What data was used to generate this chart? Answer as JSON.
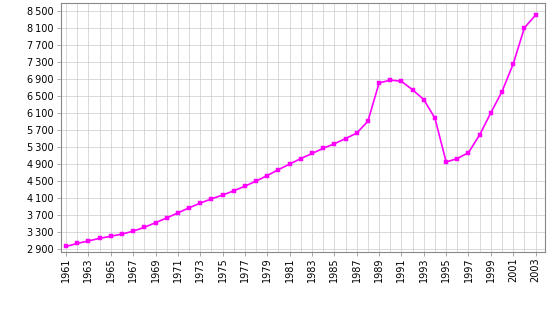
{
  "years": [
    1961,
    1962,
    1963,
    1964,
    1965,
    1966,
    1967,
    1968,
    1969,
    1970,
    1971,
    1972,
    1973,
    1974,
    1975,
    1976,
    1977,
    1978,
    1979,
    1980,
    1981,
    1982,
    1983,
    1984,
    1985,
    1986,
    1987,
    1988,
    1989,
    1990,
    1991,
    1992,
    1993,
    1994,
    1995,
    1996,
    1997,
    1998,
    1999,
    2000,
    2001,
    2002,
    2003
  ],
  "population": [
    2950,
    3020,
    3080,
    3140,
    3190,
    3240,
    3310,
    3400,
    3510,
    3620,
    3740,
    3860,
    3970,
    4070,
    4160,
    4260,
    4370,
    4490,
    4620,
    4760,
    4890,
    5020,
    5140,
    5260,
    5370,
    5490,
    5620,
    5900,
    6800,
    6870,
    6840,
    6640,
    6410,
    5970,
    4940,
    5020,
    5160,
    5580,
    6100,
    6600,
    7250,
    8100,
    8400
  ],
  "xtick_years": [
    1961,
    1963,
    1965,
    1967,
    1969,
    1971,
    1973,
    1975,
    1977,
    1979,
    1981,
    1983,
    1985,
    1987,
    1989,
    1991,
    1993,
    1995,
    1997,
    1999,
    2001,
    2003
  ],
  "line_color": "#FF00FF",
  "marker_color": "#FF00FF",
  "bg_color": "#FFFFFF",
  "grid_color": "#CCCCCC",
  "yticks": [
    2900,
    3300,
    3700,
    4100,
    4500,
    4900,
    5300,
    5700,
    6100,
    6500,
    6900,
    7300,
    7700,
    8100,
    8500
  ],
  "xlim": [
    1960.5,
    2003.8
  ],
  "ylim": [
    2820,
    8680
  ],
  "tick_fontsize": 7,
  "line_width": 1.2,
  "marker_size": 3.5
}
